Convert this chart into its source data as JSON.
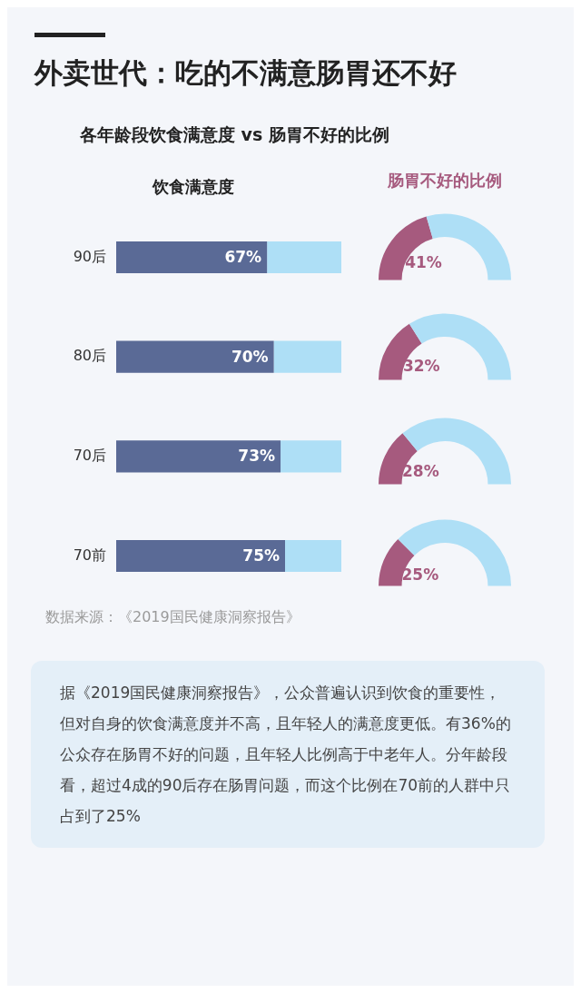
{
  "chart_data": [
    {
      "type": "other",
      "title": "外卖世代：吃的不满意肠胃还不好",
      "subtitle": "各年龄段饮食满意度 vs 肠胃不好的比例"
    },
    {
      "type": "bar",
      "orientation": "horizontal",
      "title": "饮食满意度",
      "categories": [
        "90后",
        "80后",
        "70后",
        "70前"
      ],
      "stacked": true,
      "series": [
        {
          "color": "#5a6a96",
          "values": [
            67,
            70,
            73,
            75
          ],
          "value_labels": [
            "67%",
            "70%",
            "73%",
            "75%"
          ]
        },
        {
          "color": "#aedff6",
          "values": [
            33,
            30,
            27,
            25
          ]
        }
      ],
      "xlim": [
        0,
        100
      ],
      "tick_labels": "y"
    },
    {
      "type": "donut",
      "title": "肠胃不好的比例",
      "categories": [
        null,
        null
      ],
      "values": [
        41,
        59
      ],
      "colors": [
        "#a65a7e",
        "#aedff6"
      ],
      "value_labels": [
        "41%",
        null
      ]
    },
    {
      "type": "donut",
      "categories": [
        null,
        null
      ],
      "values": [
        32,
        68
      ],
      "colors": [
        "#a65a7e",
        "#aedff6"
      ],
      "value_labels": [
        "32%",
        null
      ]
    },
    {
      "type": "donut",
      "categories": [
        null,
        null
      ],
      "values": [
        28,
        72
      ],
      "colors": [
        "#a65a7e",
        "#aedff6"
      ],
      "value_labels": [
        "28%",
        null
      ]
    },
    {
      "type": "donut",
      "categories": [
        null,
        null
      ],
      "values": [
        25,
        75
      ],
      "colors": [
        "#a65a7e",
        "#aedff6"
      ],
      "value_labels": [
        "25%",
        null
      ]
    },
    {
      "type": "other",
      "annotations": [
        "数据来源：《2019国民健康洞察报告》",
        "据《2019国民健康洞察报告》，公众普遍认识到饮食的重要性，但对自身的饮食满意度并不高，且年轻人的满意度更低。有36%的公众存在肠胃不好的问题，且年轻人比例高于中老年人。分年龄段看，超过4成的90后存在肠胃问题，而这个比例在70前的人群中只占到了25%"
      ]
    }
  ]
}
